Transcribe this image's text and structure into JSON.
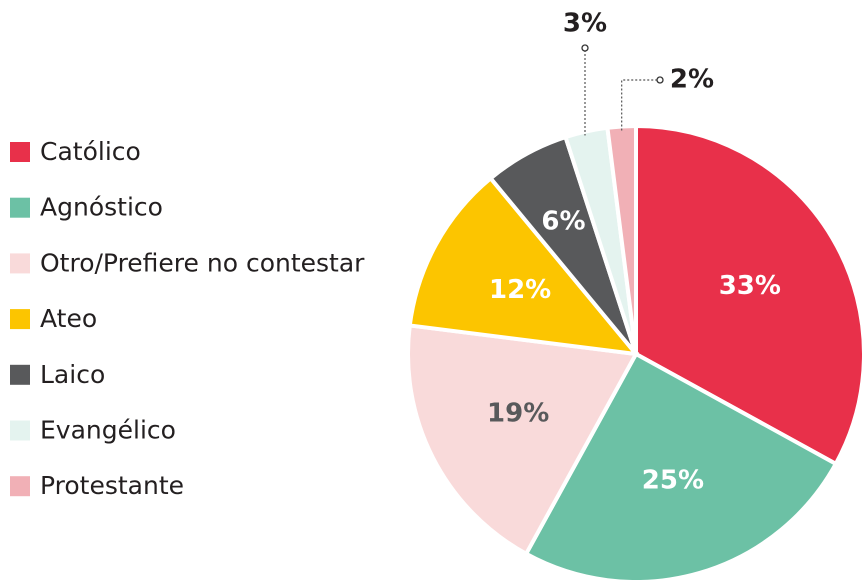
{
  "chart_data": {
    "type": "pie",
    "categories": [
      "Católico",
      "Agnóstico",
      "Otro/Prefiere no contestar",
      "Ateo",
      "Laico",
      "Evangélico",
      "Protestante"
    ],
    "values": [
      33,
      25,
      19,
      12,
      6,
      3,
      2
    ],
    "value_labels": [
      "33%",
      "25%",
      "19%",
      "12%",
      "6%",
      "3%",
      "2%"
    ],
    "colors": [
      "#e8304a",
      "#6cc1a5",
      "#f9dada",
      "#fcc500",
      "#58595b",
      "#e4f3ef",
      "#f1b0b6"
    ],
    "legend": "left"
  }
}
